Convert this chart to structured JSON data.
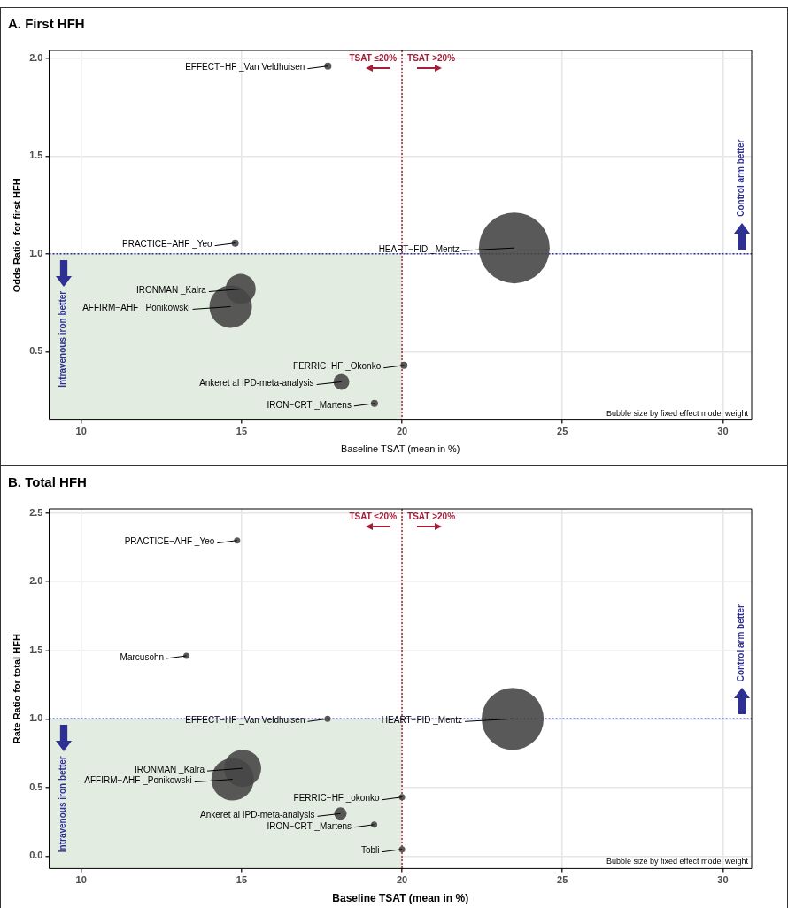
{
  "chart_data": [
    {
      "type": "bubble",
      "title": "A. First HFH",
      "xlabel": "Baseline TSAT (mean in %)",
      "ylabel": "Odds Ratio  for first HFH",
      "xlim": [
        9.0,
        30.9
      ],
      "ylim": [
        0.15,
        2.04
      ],
      "xticks": [
        10,
        15,
        20,
        25,
        30
      ],
      "yticks": [
        {
          "value": 0.5,
          "label": "0.5"
        },
        {
          "value": 1,
          "label": "1.0"
        },
        {
          "value": 1.5,
          "label": "1.5"
        },
        {
          "value": 2,
          "label": "2.0"
        }
      ],
      "grid": true,
      "legend": false,
      "series": [
        {
          "color": "#474747",
          "x": [
            17.69,
            14.8,
            23.5,
            14.97,
            14.66,
            20.06,
            18.11,
            19.14
          ],
          "values": [
            1.96,
            1.055,
            1.03,
            0.82,
            0.73,
            0.43,
            0.345,
            0.235
          ],
          "sizes": [
            0.01,
            0.01,
            1,
            0.18,
            0.36,
            0.01,
            0.05,
            0.01
          ]
        }
      ],
      "ref_lines": [
        {
          "axis": "x",
          "value": 20,
          "color": "#b22234",
          "line_style": "dotted"
        },
        {
          "axis": "y",
          "value": 1,
          "color": "#2e3192",
          "line_style": "dotted"
        }
      ],
      "bands": [
        {
          "axis": "x",
          "from": 9.0,
          "to": 20,
          "color": "#e3ece1"
        }
      ],
      "annotations": [
        "TSAT ≤20%",
        "TSAT >20%",
        "Control arm better",
        "Intravenous iron better",
        "Bubble size by fixed effect model weight",
        {
          "text": "EFFECT−HF _Van Veldhuisen",
          "x": 17.69,
          "y": 1.96
        },
        {
          "text": "PRACTICE−AHF _Yeo",
          "x": 14.8,
          "y": 1.055
        },
        {
          "text": "HEART−FID _Mentz",
          "x": 23.5,
          "y": 1.03
        },
        {
          "text": "IRONMAN _Kalra",
          "x": 14.97,
          "y": 0.82
        },
        {
          "text": "AFFIRM−AHF _Ponikowski",
          "x": 14.66,
          "y": 0.73
        },
        {
          "text": "FERRIC−HF _Okonko",
          "x": 20.06,
          "y": 0.43
        },
        {
          "text": "Ankeret al IPD-meta-analysis",
          "x": 18.11,
          "y": 0.345
        },
        {
          "text": "IRON−CRT _Martens",
          "x": 19.14,
          "y": 0.235
        }
      ]
    },
    {
      "type": "bubble",
      "title": "B. Total HFH",
      "xlabel": "Baseline TSAT (mean in %)",
      "ylabel": "Rate Ratio for total HFH",
      "xlim": [
        9.0,
        30.9
      ],
      "ylim": [
        -0.09,
        2.53
      ],
      "xticks": [
        10,
        15,
        20,
        25,
        30
      ],
      "yticks": [
        {
          "value": 0,
          "label": "0.0"
        },
        {
          "value": 0.5,
          "label": "0.5"
        },
        {
          "value": 1,
          "label": "1.0"
        },
        {
          "value": 1.5,
          "label": "1.5"
        },
        {
          "value": 2,
          "label": "2.0"
        },
        {
          "value": 2.5,
          "label": "2.5"
        }
      ],
      "grid": true,
      "legend": false,
      "series": [
        {
          "color": "#474747",
          "x": [
            14.86,
            13.28,
            17.68,
            23.45,
            15.03,
            14.72,
            20.0,
            18.08,
            19.13,
            20.0
          ],
          "values": [
            2.3,
            1.46,
            1.0,
            1.0,
            0.64,
            0.56,
            0.43,
            0.31,
            0.23,
            0.05
          ],
          "sizes": [
            0.01,
            0.01,
            0.01,
            1,
            0.36,
            0.47,
            0.01,
            0.04,
            0.01,
            0.01
          ]
        }
      ],
      "ref_lines": [
        {
          "axis": "x",
          "value": 20,
          "color": "#b22234",
          "line_style": "dotted"
        },
        {
          "axis": "y",
          "value": 1,
          "color": "#2e3192",
          "line_style": "dotted"
        }
      ],
      "bands": [
        {
          "axis": "x",
          "from": 9.0,
          "to": 20,
          "color": "#e3ece1"
        }
      ],
      "annotations": [
        "TSAT ≤20%",
        "TSAT >20%",
        "Control arm better",
        "Intravenous iron better",
        "Bubble size by fixed effect model weight",
        {
          "text": "PRACTICE−AHF _Yeo",
          "x": 14.86,
          "y": 2.3
        },
        {
          "text": "Marcusohn",
          "x": 13.28,
          "y": 1.46
        },
        {
          "text": "EFFECT−HF _Van Veldhuisen",
          "x": 17.68,
          "y": 1.0
        },
        {
          "text": "HEART−FID _Mentz",
          "x": 23.45,
          "y": 1.0
        },
        {
          "text": "IRONMAN _Kalra",
          "x": 15.03,
          "y": 0.64
        },
        {
          "text": "AFFIRM−AHF _Ponikowski",
          "x": 14.72,
          "y": 0.56
        },
        {
          "text": "FERRIC−HF _okonko",
          "x": 20.0,
          "y": 0.43
        },
        {
          "text": "Ankeret al IPD-meta-analysis",
          "x": 18.08,
          "y": 0.31
        },
        {
          "text": "IRON−CRT _Martens",
          "x": 19.13,
          "y": 0.23
        },
        {
          "text": "Tobli",
          "x": 20.0,
          "y": 0.05
        }
      ]
    }
  ]
}
